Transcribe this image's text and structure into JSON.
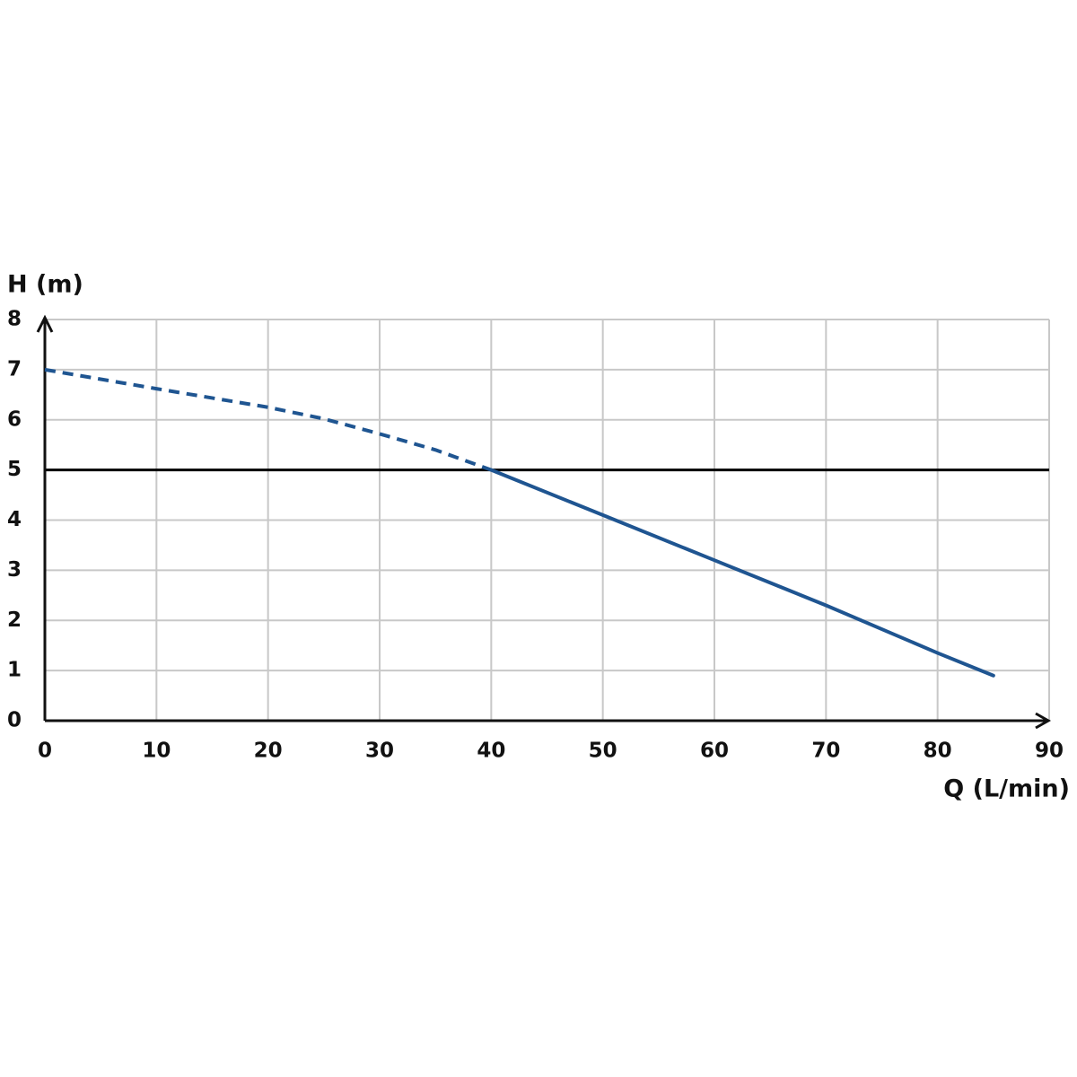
{
  "chart_data": {
    "type": "line",
    "ylabel": "H (m)",
    "xlabel": "Q (L/min)",
    "xlim": [
      0,
      90
    ],
    "xticks": [
      0,
      10,
      20,
      30,
      40,
      50,
      60,
      70,
      80,
      90
    ],
    "ylim": [
      0,
      8
    ],
    "yticks": [
      0,
      1,
      2,
      3,
      4,
      5,
      6,
      7,
      8
    ],
    "grid": true,
    "grid_color": "#c8c8c8",
    "hline": 5,
    "hline_color": "#000000",
    "series": [
      {
        "color": "#1f5591",
        "style": "dashed",
        "x": [
          0,
          10,
          20,
          25,
          30,
          35,
          40
        ],
        "values": [
          7,
          6.62,
          6.25,
          6.02,
          5.72,
          5.4,
          5
        ]
      },
      {
        "color": "#1f5591",
        "style": "solid",
        "x": [
          40,
          50,
          60,
          70,
          80,
          85
        ],
        "values": [
          5,
          4.1,
          3.2,
          2.3,
          1.35,
          0.9
        ]
      }
    ]
  }
}
